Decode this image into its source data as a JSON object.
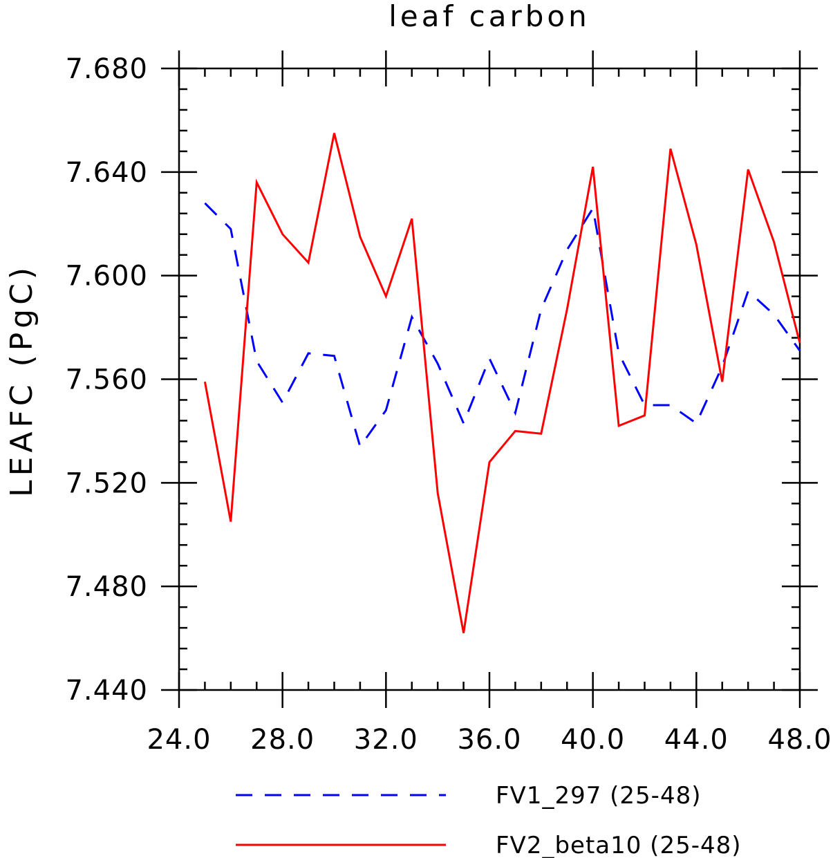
{
  "chart_data": {
    "type": "line",
    "title": "leaf carbon",
    "xlabel": "",
    "ylabel": "LEAFC  (PgC)",
    "xlim": [
      24,
      48
    ],
    "ylim": [
      7.44,
      7.68
    ],
    "xticks": [
      "24.0",
      "28.0",
      "32.0",
      "36.0",
      "40.0",
      "44.0",
      "48.0"
    ],
    "yticks": [
      "7.440",
      "7.480",
      "7.520",
      "7.560",
      "7.600",
      "7.640",
      "7.680"
    ],
    "x": [
      25,
      26,
      27,
      28,
      29,
      30,
      31,
      32,
      33,
      34,
      35,
      36,
      37,
      38,
      39,
      40,
      41,
      42,
      43,
      44,
      45,
      46,
      47,
      48
    ],
    "series": [
      {
        "name": "FV1_297 (25-48)",
        "color": "#0000ff",
        "style": "dashed",
        "values": [
          7.628,
          7.618,
          7.567,
          7.551,
          7.57,
          7.569,
          7.534,
          7.548,
          7.584,
          7.566,
          7.543,
          7.568,
          7.547,
          7.587,
          7.61,
          7.626,
          7.57,
          7.55,
          7.55,
          7.543,
          7.565,
          7.594,
          7.585,
          7.571
        ]
      },
      {
        "name": "FV2_beta10 (25-48)",
        "color": "#ff0000",
        "style": "solid",
        "values": [
          7.559,
          7.505,
          7.636,
          7.616,
          7.605,
          7.655,
          7.615,
          7.592,
          7.622,
          7.516,
          7.462,
          7.528,
          7.54,
          7.539,
          7.587,
          7.642,
          7.542,
          7.546,
          7.649,
          7.612,
          7.559,
          7.641,
          7.613,
          7.574
        ]
      }
    ],
    "grid": false,
    "legend_position": "bottom"
  }
}
